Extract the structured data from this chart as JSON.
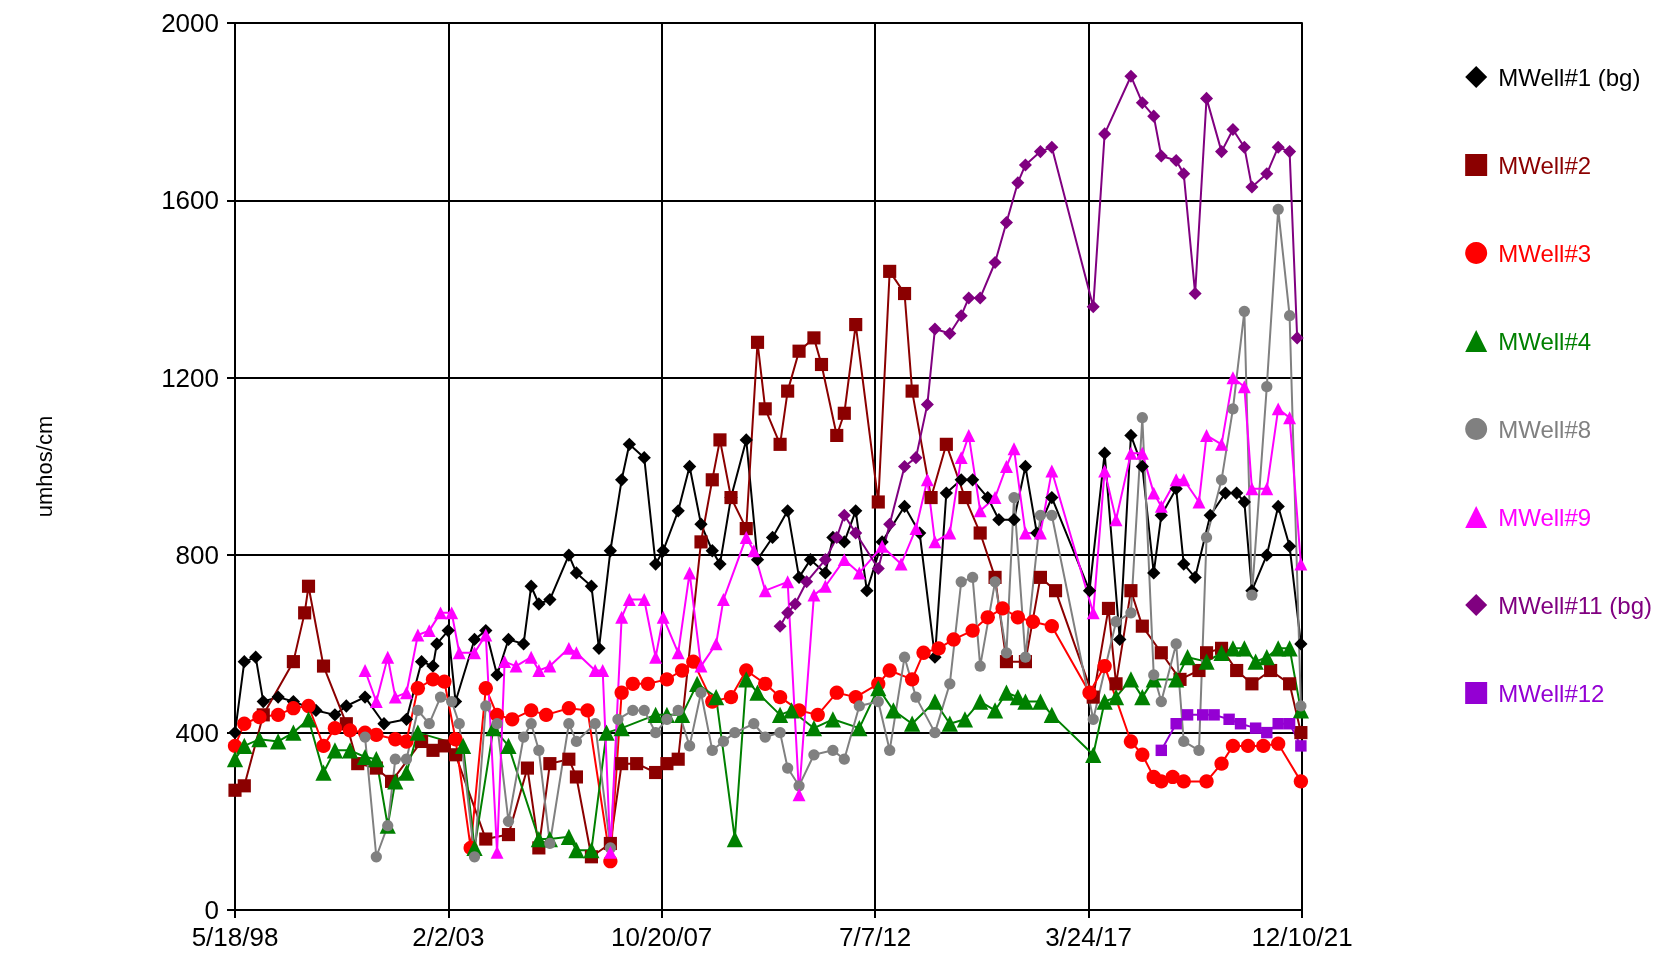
{
  "chart_data": {
    "type": "line",
    "ylabel": "umhos/cm",
    "xlim": [
      "1998-05-18",
      "2021-12-10"
    ],
    "ylim": [
      0,
      2000
    ],
    "xticks": [
      {
        "value": "1998-05-18",
        "label": "5/18/98"
      },
      {
        "value": "2003-02-02",
        "label": "2/2/03"
      },
      {
        "value": "2007-10-20",
        "label": "10/20/07"
      },
      {
        "value": "2012-07-07",
        "label": "7/7/12"
      },
      {
        "value": "2017-03-24",
        "label": "3/24/17"
      },
      {
        "value": "2021-12-10",
        "label": "12/10/21"
      }
    ],
    "yticks": [
      0,
      400,
      800,
      1200,
      1600,
      2000
    ],
    "grid": true,
    "legend": "right",
    "line_style": "solid",
    "series": [
      {
        "name": "MWell#1 (bg)",
        "color": "#000000",
        "marker": "diamond",
        "x": [
          "1998-05-18",
          "1998-08",
          "1998-11",
          "1999-01",
          "1999-05",
          "1999-09",
          "2000-03",
          "2000-08",
          "2000-11",
          "2001-04",
          "2001-09",
          "2002-03",
          "2002-07",
          "2002-10",
          "2002-11",
          "2003-02",
          "2003-04",
          "2003-09",
          "2003-12",
          "2004-03",
          "2004-06",
          "2004-10",
          "2004-12",
          "2005-02",
          "2005-05",
          "2005-10",
          "2005-12",
          "2006-04",
          "2006-06",
          "2006-09",
          "2006-12",
          "2007-02",
          "2007-06",
          "2007-09",
          "2007-11",
          "2008-03",
          "2008-06",
          "2008-09",
          "2008-12",
          "2009-02",
          "2009-05",
          "2009-09",
          "2009-12",
          "2010-04",
          "2010-08",
          "2010-11",
          "2011-02",
          "2011-06",
          "2011-08",
          "2011-11",
          "2012-02",
          "2012-05",
          "2012-09",
          "2013-03",
          "2013-07",
          "2013-11",
          "2014-02",
          "2014-06",
          "2014-09",
          "2015-01",
          "2015-04",
          "2015-08",
          "2015-11",
          "2016-02",
          "2016-06",
          "2017-04",
          "2017-08",
          "2017-12",
          "2018-03",
          "2018-06",
          "2018-09",
          "2018-11",
          "2019-03",
          "2019-05",
          "2019-08",
          "2019-12",
          "2020-04",
          "2020-07",
          "2020-09",
          "2020-11",
          "2021-03",
          "2021-06",
          "2021-09",
          "2021-12"
        ],
        "values": [
          400,
          560,
          570,
          470,
          480,
          470,
          450,
          440,
          460,
          480,
          420,
          430,
          560,
          550,
          600,
          630,
          470,
          610,
          630,
          530,
          610,
          600,
          730,
          690,
          700,
          800,
          760,
          730,
          590,
          810,
          970,
          1050,
          1020,
          780,
          810,
          900,
          1000,
          870,
          810,
          780,
          930,
          1060,
          790,
          840,
          900,
          750,
          790,
          760,
          840,
          830,
          900,
          720,
          830,
          910,
          850,
          570,
          940,
          970,
          970,
          930,
          880,
          880,
          1000,
          850,
          930,
          720,
          1030,
          610,
          1070,
          1000,
          760,
          890,
          950,
          780,
          750,
          890,
          940,
          940,
          920,
          720,
          800,
          910,
          820,
          600
        ]
      },
      {
        "name": "MWell#2",
        "color": "#8b0000",
        "marker": "square",
        "x": [
          "1998-05-18",
          "1998-08",
          "1999-01",
          "1999-09",
          "1999-12",
          "2000-01",
          "2000-05",
          "2000-11",
          "2001-02",
          "2001-07",
          "2001-11",
          "2002-03",
          "2002-07",
          "2002-10",
          "2003-01",
          "2003-04",
          "2003-09",
          "2003-12",
          "2004-06",
          "2004-11",
          "2005-02",
          "2005-05",
          "2005-10",
          "2005-12",
          "2006-04",
          "2006-09",
          "2006-12",
          "2007-04",
          "2007-09",
          "2007-12",
          "2008-03",
          "2008-09",
          "2008-12",
          "2009-02",
          "2009-05",
          "2009-09",
          "2009-12",
          "2010-02",
          "2010-06",
          "2010-08",
          "2010-11",
          "2011-03",
          "2011-05",
          "2011-09",
          "2011-11",
          "2012-02",
          "2012-08",
          "2012-11",
          "2013-03",
          "2013-05",
          "2013-10",
          "2014-02",
          "2014-07",
          "2014-11",
          "2015-03",
          "2015-06",
          "2015-11",
          "2016-03",
          "2016-07",
          "2017-05",
          "2017-09",
          "2017-11",
          "2018-03",
          "2018-06",
          "2018-11",
          "2019-04",
          "2019-09",
          "2019-11",
          "2020-03",
          "2020-07",
          "2020-11",
          "2021-04",
          "2021-09",
          "2021-12"
        ],
        "values": [
          270,
          280,
          440,
          560,
          670,
          730,
          550,
          420,
          330,
          320,
          290,
          null,
          380,
          360,
          370,
          350,
          null,
          160,
          170,
          320,
          140,
          330,
          340,
          300,
          120,
          150,
          330,
          330,
          310,
          330,
          340,
          830,
          970,
          1060,
          930,
          860,
          1280,
          1130,
          1050,
          1170,
          1260,
          1290,
          1230,
          1070,
          1120,
          1320,
          920,
          1440,
          1390,
          1170,
          930,
          1050,
          930,
          850,
          750,
          560,
          560,
          750,
          720,
          480,
          680,
          510,
          720,
          640,
          580,
          520,
          540,
          580,
          590,
          540,
          510,
          540,
          510,
          400
        ]
      },
      {
        "name": "MWell#3",
        "color": "#ff0000",
        "marker": "circle",
        "x": [
          "1998-05-18",
          "1998-08",
          "1998-12",
          "1999-05",
          "1999-09",
          "2000-01",
          "2000-05",
          "2000-08",
          "2000-12",
          "2001-04",
          "2001-07",
          "2001-12",
          "2002-03",
          "2002-06",
          "2002-10",
          "2003-01",
          "2003-04",
          "2003-08",
          "2003-12",
          "2004-03",
          "2004-07",
          "2004-12",
          "2005-04",
          "2005-10",
          "2006-03",
          "2006-09",
          "2006-12",
          "2007-03",
          "2007-07",
          "2007-12",
          "2008-04",
          "2008-07",
          "2008-12",
          "2009-05",
          "2009-09",
          "2010-02",
          "2010-06",
          "2010-11",
          "2011-04",
          "2011-09",
          "2012-02",
          "2012-08",
          "2012-11",
          "2013-05",
          "2013-08",
          "2013-12",
          "2014-04",
          "2014-09",
          "2015-01",
          "2015-05",
          "2015-09",
          "2016-01",
          "2016-06",
          "2017-04",
          "2017-08",
          "2018-03",
          "2018-06",
          "2018-09",
          "2018-11",
          "2019-02",
          "2019-05",
          "2019-11",
          "2020-03",
          "2020-06",
          "2020-10",
          "2021-02",
          "2021-06",
          "2021-12"
        ],
        "values": [
          370,
          420,
          435,
          440,
          455,
          460,
          370,
          410,
          405,
          400,
          395,
          385,
          380,
          500,
          520,
          515,
          385,
          140,
          500,
          440,
          430,
          450,
          440,
          455,
          450,
          110,
          490,
          510,
          510,
          520,
          540,
          560,
          470,
          480,
          540,
          510,
          480,
          450,
          440,
          490,
          480,
          510,
          540,
          520,
          580,
          590,
          610,
          630,
          660,
          680,
          660,
          650,
          640,
          490,
          550,
          380,
          350,
          300,
          290,
          300,
          290,
          290,
          330,
          370,
          370,
          370,
          375,
          290
        ]
      },
      {
        "name": "MWell#4",
        "color": "#008000",
        "marker": "triangle",
        "x": [
          "1998-05-18",
          "1998-08",
          "1998-12",
          "1999-05",
          "1999-09",
          "2000-01",
          "2000-05",
          "2000-08",
          "2000-12",
          "2001-04",
          "2001-07",
          "2001-10",
          "2001-12",
          "2002-03",
          "2002-06",
          "2003-06",
          "2003-09",
          "2004-02",
          "2004-06",
          "2005-02",
          "2005-05",
          "2005-10",
          "2005-12",
          "2006-04",
          "2006-08",
          "2006-12",
          "2007-09",
          "2007-12",
          "2008-04",
          "2008-08",
          "2009-01",
          "2009-06",
          "2009-09",
          "2009-12",
          "2010-06",
          "2010-09",
          "2011-03",
          "2011-08",
          "2012-03",
          "2012-08",
          "2012-12",
          "2013-05",
          "2013-11",
          "2014-03",
          "2014-07",
          "2014-11",
          "2015-03",
          "2015-06",
          "2015-09",
          "2015-11",
          "2016-03",
          "2016-06",
          "2017-05",
          "2017-08",
          "2017-11",
          "2018-03",
          "2018-06",
          "2018-09",
          "2019-03",
          "2019-06",
          "2019-11",
          "2020-03",
          "2020-06",
          "2020-09",
          "2020-12",
          "2021-03",
          "2021-06",
          "2021-09",
          "2021-12"
        ],
        "values": [
          340,
          370,
          385,
          380,
          400,
          430,
          310,
          360,
          360,
          345,
          340,
          190,
          290,
          310,
          400,
          370,
          140,
          410,
          370,
          160,
          160,
          165,
          135,
          135,
          400,
          410,
          440,
          440,
          440,
          510,
          480,
          160,
          520,
          490,
          440,
          450,
          410,
          430,
          410,
          500,
          450,
          420,
          470,
          420,
          430,
          470,
          450,
          490,
          480,
          470,
          470,
          440,
          350,
          470,
          480,
          520,
          480,
          520,
          520,
          570,
          560,
          580,
          590,
          590,
          560,
          570,
          590,
          590,
          450
        ]
      },
      {
        "name": "MWell#8",
        "color": "#808080",
        "marker": "circle",
        "x": [
          "2001-04",
          "2001-07",
          "2001-10",
          "2001-12",
          "2002-03",
          "2002-06",
          "2002-09",
          "2002-12",
          "2003-03",
          "2003-05",
          "2003-09",
          "2003-12",
          "2004-03",
          "2004-06",
          "2004-10",
          "2004-12",
          "2005-02",
          "2005-05",
          "2005-10",
          "2005-12",
          "2006-05",
          "2006-09",
          "2006-11",
          "2007-03",
          "2007-06",
          "2007-09",
          "2007-12",
          "2008-03",
          "2008-06",
          "2008-09",
          "2008-12",
          "2009-03",
          "2009-06",
          "2009-11",
          "2010-02",
          "2010-06",
          "2010-08",
          "2010-11",
          "2011-03",
          "2011-08",
          "2011-11",
          "2012-03",
          "2012-08",
          "2012-11",
          "2013-03",
          "2013-06",
          "2013-11",
          "2014-03",
          "2014-06",
          "2014-09",
          "2014-11",
          "2015-03",
          "2015-06",
          "2015-08",
          "2015-11",
          "2016-03",
          "2016-06",
          "2017-05",
          "2017-08",
          "2017-11",
          "2018-03",
          "2018-06",
          "2018-09",
          "2018-11",
          "2019-03",
          "2019-05",
          "2019-09",
          "2019-11",
          "2020-03",
          "2020-06",
          "2020-09",
          "2020-11",
          "2021-03",
          "2021-06",
          "2021-09",
          "2021-12"
        ],
        "values": [
          390,
          120,
          190,
          340,
          340,
          450,
          420,
          480,
          470,
          420,
          120,
          460,
          420,
          200,
          390,
          420,
          360,
          150,
          420,
          380,
          420,
          140,
          430,
          450,
          450,
          400,
          430,
          450,
          370,
          490,
          360,
          380,
          400,
          420,
          390,
          400,
          320,
          280,
          350,
          360,
          340,
          460,
          470,
          360,
          570,
          480,
          400,
          510,
          740,
          750,
          550,
          740,
          580,
          930,
          570,
          890,
          890,
          430,
          null,
          650,
          670,
          1110,
          530,
          470,
          600,
          380,
          360,
          840,
          970,
          1130,
          1350,
          710,
          1180,
          1580,
          1340,
          460
        ]
      },
      {
        "name": "MWell#9",
        "color": "#ff00ff",
        "marker": "triangle",
        "x": [
          "2001-04",
          "2001-07",
          "2001-10",
          "2001-12",
          "2002-03",
          "2002-06",
          "2002-09",
          "2002-12",
          "2003-03",
          "2003-05",
          "2003-09",
          "2003-12",
          "2004-03",
          "2004-05",
          "2004-08",
          "2004-12",
          "2005-02",
          "2005-05",
          "2005-10",
          "2005-12",
          "2006-05",
          "2006-07",
          "2006-09",
          "2006-12",
          "2007-02",
          "2007-06",
          "2007-09",
          "2007-11",
          "2008-03",
          "2008-06",
          "2008-09",
          "2009-01",
          "2009-03",
          "2009-09",
          "2009-11",
          "2010-02",
          "2010-08",
          "2010-11",
          "2011-03",
          "2011-06",
          "2011-11",
          "2012-03",
          "2012-09",
          "2013-02",
          "2013-06",
          "2013-09",
          "2013-11",
          "2014-03",
          "2014-06",
          "2014-08",
          "2014-11",
          "2015-03",
          "2015-06",
          "2015-08",
          "2015-11",
          "2016-03",
          "2016-06",
          "2017-05",
          "2017-08",
          "2017-11",
          "2018-03",
          "2018-06",
          "2018-09",
          "2018-11",
          "2019-03",
          "2019-05",
          "2019-09",
          "2019-11",
          "2020-03",
          "2020-06",
          "2020-09",
          "2020-11",
          "2021-03",
          "2021-06",
          "2021-09",
          "2021-12"
        ],
        "values": [
          540,
          470,
          570,
          480,
          490,
          620,
          630,
          670,
          670,
          580,
          580,
          620,
          130,
          560,
          550,
          570,
          540,
          550,
          590,
          580,
          540,
          540,
          130,
          660,
          700,
          700,
          570,
          660,
          580,
          760,
          550,
          600,
          700,
          840,
          810,
          720,
          740,
          260,
          710,
          730,
          790,
          760,
          820,
          780,
          860,
          970,
          830,
          850,
          1020,
          1070,
          900,
          930,
          1000,
          1040,
          850,
          850,
          990,
          670,
          990,
          880,
          1030,
          1030,
          940,
          910,
          970,
          970,
          920,
          1070,
          1050,
          1200,
          1180,
          950,
          950,
          1130,
          1110,
          780
        ]
      },
      {
        "name": "MWell#11 (bg)",
        "color": "#800080",
        "marker": "diamond",
        "x": [
          "2010-06",
          "2010-08",
          "2010-10",
          "2011-01",
          "2011-06",
          "2011-09",
          "2011-11",
          "2012-02",
          "2012-08",
          "2012-11",
          "2013-03",
          "2013-06",
          "2013-09",
          "2013-11",
          "2014-03",
          "2014-06",
          "2014-08",
          "2014-11",
          "2015-03",
          "2015-06",
          "2015-09",
          "2015-11",
          "2016-03",
          "2016-06",
          "2017-05",
          "2017-08",
          "2018-03",
          "2018-06",
          "2018-09",
          "2018-11",
          "2019-03",
          "2019-05",
          "2019-08",
          "2019-11",
          "2020-03",
          "2020-06",
          "2020-09",
          "2020-11",
          "2021-03",
          "2021-06",
          "2021-09",
          "2021-11"
        ],
        "values": [
          640,
          670,
          690,
          740,
          790,
          840,
          890,
          850,
          770,
          870,
          1000,
          1020,
          1140,
          1310,
          1300,
          1340,
          1380,
          1380,
          1460,
          1550,
          1640,
          1680,
          1710,
          1720,
          1360,
          1750,
          1880,
          1820,
          1790,
          1700,
          1690,
          1660,
          1390,
          1830,
          1710,
          1760,
          1720,
          1630,
          1660,
          1720,
          1710,
          1290
        ]
      },
      {
        "name": "MWell#12",
        "color": "#9400d3",
        "marker": "square",
        "x": [
          "2018-11",
          "2019-03",
          "2019-06",
          "2019-10",
          "2020-01",
          "2020-05",
          "2020-08",
          "2020-12",
          "2021-03",
          "2021-06",
          "2021-09",
          "2021-12"
        ],
        "values": [
          360,
          420,
          440,
          440,
          440,
          430,
          420,
          410,
          400,
          420,
          420,
          370
        ]
      }
    ]
  }
}
